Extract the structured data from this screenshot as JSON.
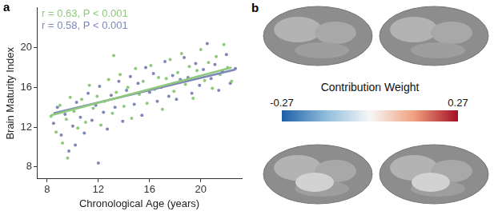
{
  "chart_data": {
    "type": "scatter",
    "panel_label": "a",
    "x_label": "Chronological Age (years)",
    "y_label": "Brain Maturity Index",
    "xlim": [
      7.2,
      23.2
    ],
    "xticks": [
      8,
      12,
      16,
      20
    ],
    "ylim": [
      6.8,
      24
    ],
    "yticks": [
      8,
      12,
      16,
      20
    ],
    "grid": false,
    "annotations": [
      {
        "text": "r = 0.63, P < 0.001",
        "color": "#8fc97c"
      },
      {
        "text": "r = 0.58, P < 0.001",
        "color": "#7d87b8"
      }
    ],
    "series": [
      {
        "color": "#8fc97c",
        "marker": "circle",
        "x": [
          8.3,
          8.7,
          9.0,
          9.2,
          9.5,
          9.8,
          10.1,
          10.4,
          10.7,
          11.0,
          11.3,
          11.6,
          11.9,
          12.2,
          12.5,
          12.8,
          13.1,
          13.4,
          13.7,
          14.0,
          14.3,
          14.6,
          14.9,
          15.2,
          15.5,
          15.8,
          16.1,
          16.4,
          16.7,
          17.0,
          17.3,
          17.6,
          17.9,
          18.2,
          18.5,
          18.8,
          19.1,
          19.4,
          19.7,
          20.0,
          20.3,
          20.6,
          20.9,
          21.2,
          21.5,
          21.8,
          22.1,
          22.4,
          9.6,
          13.2
        ],
        "values": [
          13.1,
          11.5,
          14.2,
          10.4,
          12.8,
          15.0,
          13.6,
          11.9,
          14.8,
          12.5,
          16.2,
          13.9,
          15.1,
          12.2,
          14.6,
          16.8,
          13.4,
          15.5,
          17.3,
          14.1,
          16.0,
          12.9,
          17.9,
          15.3,
          16.6,
          14.4,
          18.2,
          15.8,
          17.0,
          13.8,
          16.9,
          18.8,
          15.6,
          17.5,
          19.4,
          16.3,
          18.1,
          14.9,
          17.7,
          19.8,
          16.7,
          18.5,
          15.9,
          19.1,
          17.3,
          20.3,
          18.0,
          16.6,
          8.9,
          19.2
        ]
      },
      {
        "color": "#7d87b8",
        "marker": "circle",
        "x": [
          8.5,
          8.8,
          9.1,
          9.4,
          9.7,
          10.0,
          10.3,
          10.6,
          10.9,
          11.2,
          11.5,
          11.8,
          12.1,
          12.4,
          12.7,
          13.0,
          13.3,
          13.6,
          13.9,
          14.2,
          14.5,
          14.8,
          15.1,
          15.4,
          15.7,
          16.0,
          16.3,
          16.6,
          16.9,
          17.2,
          17.5,
          17.8,
          18.1,
          18.4,
          18.7,
          19.0,
          19.3,
          19.6,
          19.9,
          20.2,
          20.5,
          20.8,
          21.1,
          21.4,
          21.7,
          22.0,
          22.3,
          22.7,
          10.2,
          12.0
        ],
        "values": [
          12.4,
          14.0,
          11.2,
          13.3,
          9.6,
          12.1,
          14.5,
          13.0,
          11.4,
          15.4,
          12.7,
          14.2,
          16.1,
          13.5,
          11.8,
          15.2,
          14.0,
          16.6,
          12.6,
          15.7,
          17.1,
          14.3,
          16.4,
          13.2,
          18.0,
          15.5,
          17.4,
          14.6,
          16.0,
          18.6,
          15.1,
          17.2,
          14.8,
          16.8,
          19.0,
          17.0,
          15.4,
          18.4,
          16.2,
          17.8,
          20.4,
          16.9,
          18.3,
          15.7,
          17.6,
          19.3,
          16.4,
          17.9,
          10.2,
          8.4
        ]
      },
      {
        "type": "line",
        "color": "#8fc97c",
        "line_style": "solid",
        "x": [
          8.3,
          22.4
        ],
        "values": [
          13.2,
          18.0
        ]
      },
      {
        "type": "line",
        "color": "#7d87b8",
        "line_style": "solid",
        "x": [
          8.5,
          22.7
        ],
        "values": [
          13.4,
          17.8
        ]
      }
    ]
  },
  "panel_b": {
    "panel_label": "b",
    "colorbar": {
      "title": "Contribution Weight",
      "range": [
        -0.27,
        0.27
      ],
      "ticks": [
        -0.27,
        0.27
      ]
    }
  }
}
